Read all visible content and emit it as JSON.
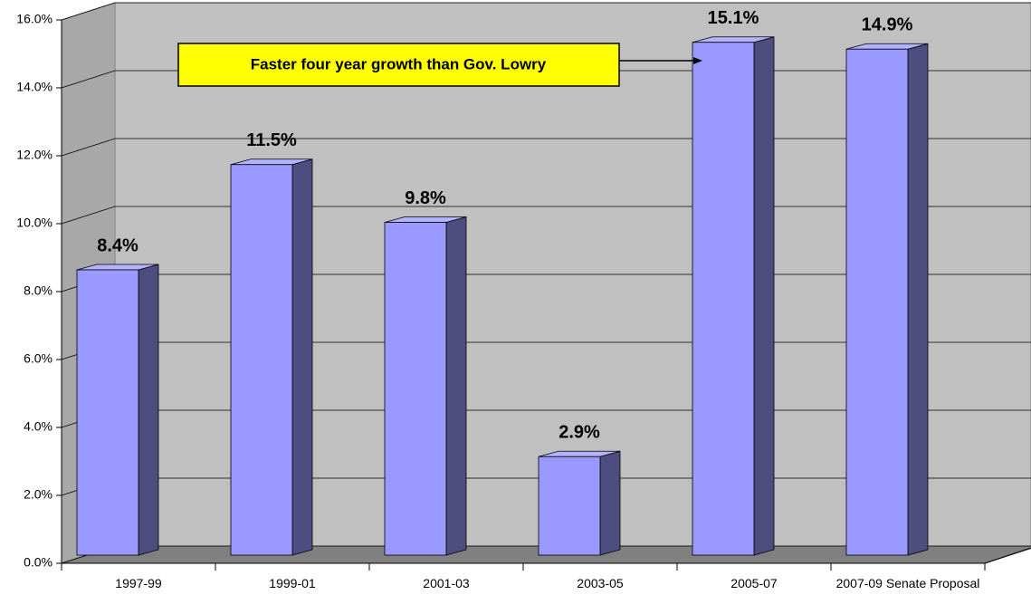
{
  "chart_data": {
    "type": "bar",
    "categories": [
      "1997-99",
      "1999-01",
      "2001-03",
      "2003-05",
      "2005-07",
      "2007-09 Senate Proposal"
    ],
    "values": [
      8.4,
      11.5,
      9.8,
      2.9,
      15.1,
      14.9
    ],
    "value_labels": [
      "8.4%",
      "11.5%",
      "9.8%",
      "2.9%",
      "15.1%",
      "14.9%"
    ],
    "color": "#9999ff",
    "ylim": [
      0,
      16
    ],
    "yticks": [
      {
        "value": 0,
        "label": "0.0%"
      },
      {
        "value": 2,
        "label": "2.0%"
      },
      {
        "value": 4,
        "label": "4.0%"
      },
      {
        "value": 6,
        "label": "6.0%"
      },
      {
        "value": 8,
        "label": "8.0%"
      },
      {
        "value": 10,
        "label": "10.0%"
      },
      {
        "value": 12,
        "label": "12.0%"
      },
      {
        "value": 14,
        "label": "14.0%"
      },
      {
        "value": 16,
        "label": "16.0%"
      }
    ],
    "grid": true,
    "annotation": "Faster four year growth than Gov. Lowry"
  }
}
